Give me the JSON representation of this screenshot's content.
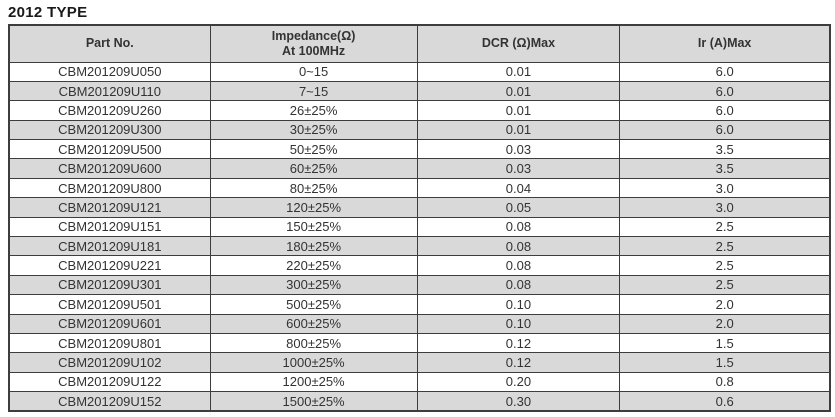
{
  "page": {
    "title": "2012 TYPE"
  },
  "colors": {
    "header_bg": "#d9d9d9",
    "row_alt": "#d9d9d9",
    "border": "#3d3d3d",
    "text": "#333333"
  },
  "table": {
    "header": {
      "part_no": "Part No.",
      "impedance_line1": "Impedance(Ω)",
      "impedance_line2": "At 100MHz",
      "dcr": "DCR (Ω)Max",
      "ir": "Ir (A)Max"
    },
    "rows": [
      {
        "part_no": "CBM201209U050",
        "impedance": "0~15",
        "dcr": "0.01",
        "ir": "6.0"
      },
      {
        "part_no": "CBM201209U110",
        "impedance": "7~15",
        "dcr": "0.01",
        "ir": "6.0"
      },
      {
        "part_no": "CBM201209U260",
        "impedance": "26±25%",
        "dcr": "0.01",
        "ir": "6.0"
      },
      {
        "part_no": "CBM201209U300",
        "impedance": "30±25%",
        "dcr": "0.01",
        "ir": "6.0"
      },
      {
        "part_no": "CBM201209U500",
        "impedance": "50±25%",
        "dcr": "0.03",
        "ir": "3.5"
      },
      {
        "part_no": "CBM201209U600",
        "impedance": "60±25%",
        "dcr": "0.03",
        "ir": "3.5"
      },
      {
        "part_no": "CBM201209U800",
        "impedance": "80±25%",
        "dcr": "0.04",
        "ir": "3.0"
      },
      {
        "part_no": "CBM201209U121",
        "impedance": "120±25%",
        "dcr": "0.05",
        "ir": "3.0"
      },
      {
        "part_no": "CBM201209U151",
        "impedance": "150±25%",
        "dcr": "0.08",
        "ir": "2.5"
      },
      {
        "part_no": "CBM201209U181",
        "impedance": "180±25%",
        "dcr": "0.08",
        "ir": "2.5"
      },
      {
        "part_no": "CBM201209U221",
        "impedance": "220±25%",
        "dcr": "0.08",
        "ir": "2.5"
      },
      {
        "part_no": "CBM201209U301",
        "impedance": "300±25%",
        "dcr": "0.08",
        "ir": "2.5"
      },
      {
        "part_no": "CBM201209U501",
        "impedance": "500±25%",
        "dcr": "0.10",
        "ir": "2.0"
      },
      {
        "part_no": "CBM201209U601",
        "impedance": "600±25%",
        "dcr": "0.10",
        "ir": "2.0"
      },
      {
        "part_no": "CBM201209U801",
        "impedance": "800±25%",
        "dcr": "0.12",
        "ir": "1.5"
      },
      {
        "part_no": "CBM201209U102",
        "impedance": "1000±25%",
        "dcr": "0.12",
        "ir": "1.5"
      },
      {
        "part_no": "CBM201209U122",
        "impedance": "1200±25%",
        "dcr": "0.20",
        "ir": "0.8"
      },
      {
        "part_no": "CBM201209U152",
        "impedance": "1500±25%",
        "dcr": "0.30",
        "ir": "0.6"
      }
    ]
  }
}
